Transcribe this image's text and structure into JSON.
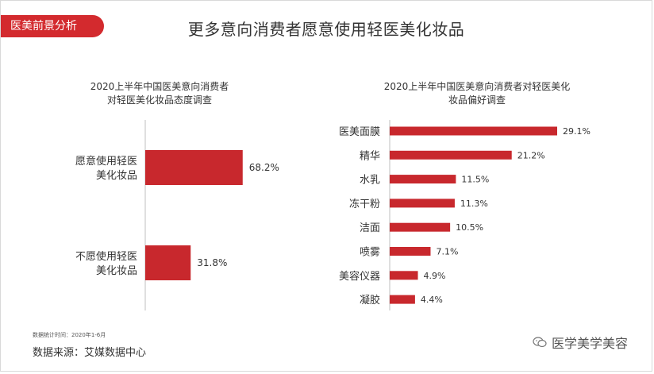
{
  "header": {
    "tag_label": "医美前景分析",
    "title": "更多意向消费者愿意使用轻医美化妆品"
  },
  "colors": {
    "accent": "#d32a2e",
    "bar": "#c8282d",
    "axis": "#bfbfbf"
  },
  "left_title": [
    "2020上半年中国医美意向消费者",
    "对轻医美化妆品态度调查"
  ],
  "right_title": [
    "2020上半年中国医美意向消费者对轻医美化",
    "妆品偏好调查"
  ],
  "chart_data": [
    {
      "type": "bar",
      "orientation": "horizontal",
      "title": "2020上半年中国医美意向消费者对轻医美化妆品态度调查",
      "categories": [
        [
          "愿意使用轻医",
          "美化妆品"
        ],
        [
          "不愿使用轻医",
          "美化妆品"
        ]
      ],
      "values": [
        68.2,
        31.8
      ],
      "labels": [
        "68.2%",
        "31.8%"
      ],
      "unit": "%",
      "xlim": [
        0,
        100
      ]
    },
    {
      "type": "bar",
      "orientation": "horizontal",
      "title": "2020上半年中国医美意向消费者对轻医美化妆品偏好调查",
      "categories": [
        "医美面膜",
        "精华",
        "水乳",
        "冻干粉",
        "洁面",
        "喷雾",
        "美容仪器",
        "凝胶"
      ],
      "values": [
        29.1,
        21.2,
        11.5,
        11.3,
        10.5,
        7.1,
        4.9,
        4.4
      ],
      "labels": [
        "29.1%",
        "21.2%",
        "11.5%",
        "11.3%",
        "10.5%",
        "7.1%",
        "4.9%",
        "4.4%"
      ],
      "unit": "%",
      "xlim": [
        0,
        30
      ]
    }
  ],
  "footer": {
    "note": "数据统计时间：2020年1-6月",
    "source": "数据来源：艾媒数据中心",
    "watermark": "医学美学美容",
    "watermark_icon": "wechat-icon"
  }
}
